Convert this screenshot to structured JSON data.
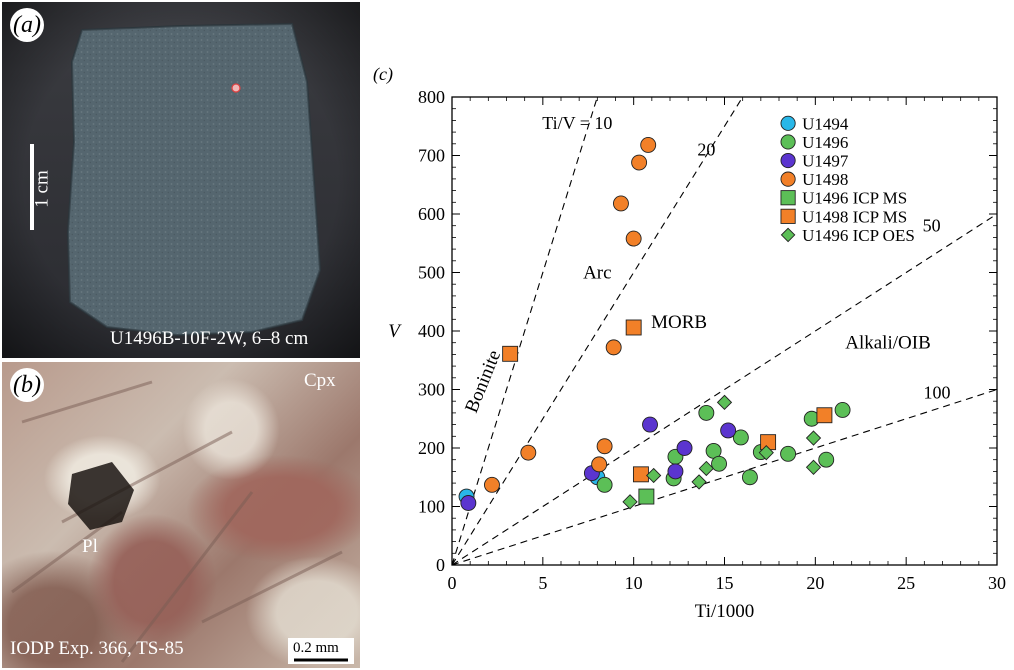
{
  "panel_a": {
    "tag": "(a)",
    "scale_label": "1 cm",
    "sample_label": "U1496B-10F-2W, 6–8 cm"
  },
  "panel_b": {
    "tag": "(b)",
    "mineral_cpx": "Cpx",
    "mineral_pl": "Pl",
    "sample_label": "IODP Exp. 366, TS-85",
    "scale_label": "0.2 mm"
  },
  "chart_data": {
    "type": "scatter",
    "panel_label": "(c)",
    "title": "",
    "xlabel": "Ti/1000",
    "ylabel": "V",
    "xlim": [
      0,
      30
    ],
    "ylim": [
      0,
      800
    ],
    "x_ticks": [
      0,
      5,
      10,
      15,
      20,
      25,
      30
    ],
    "y_ticks": [
      0,
      100,
      200,
      300,
      400,
      500,
      600,
      700,
      800
    ],
    "grid": false,
    "legend_position": "top-right",
    "reference_lines": [
      {
        "ratio": 10,
        "label": "Ti/V = 10"
      },
      {
        "ratio": 20,
        "label": "20"
      },
      {
        "ratio": 50,
        "label": "50"
      },
      {
        "ratio": 100,
        "label": "100"
      }
    ],
    "field_labels": [
      {
        "text": "Arc",
        "x": 8.0,
        "y": 490
      },
      {
        "text": "MORB",
        "x": 12.5,
        "y": 405
      },
      {
        "text": "Alkali/OIB",
        "x": 24.0,
        "y": 370
      },
      {
        "text": "Boninite",
        "x": 2.0,
        "y": 310
      }
    ],
    "series": [
      {
        "name": "U1494",
        "marker": "circle",
        "color": "#29b7e8",
        "points": [
          [
            0.8,
            117
          ],
          [
            8.0,
            150
          ]
        ]
      },
      {
        "name": "U1496",
        "marker": "circle",
        "color": "#5cbf57",
        "points": [
          [
            8.4,
            137
          ],
          [
            12.2,
            148
          ],
          [
            12.3,
            185
          ],
          [
            14.0,
            260
          ],
          [
            14.4,
            195
          ],
          [
            14.7,
            173
          ],
          [
            15.9,
            218
          ],
          [
            16.4,
            150
          ],
          [
            17.0,
            193
          ],
          [
            18.5,
            190
          ],
          [
            19.8,
            250
          ],
          [
            20.6,
            180
          ],
          [
            21.5,
            265
          ]
        ]
      },
      {
        "name": "U1497",
        "marker": "circle",
        "color": "#5b35cf",
        "points": [
          [
            0.9,
            106
          ],
          [
            7.7,
            157
          ],
          [
            10.9,
            240
          ],
          [
            12.3,
            160
          ],
          [
            12.8,
            200
          ],
          [
            15.2,
            230
          ]
        ]
      },
      {
        "name": "U1498",
        "marker": "circle",
        "color": "#f28028",
        "points": [
          [
            2.2,
            137
          ],
          [
            4.2,
            192
          ],
          [
            8.1,
            172
          ],
          [
            8.4,
            203
          ],
          [
            8.9,
            372
          ],
          [
            9.3,
            618
          ],
          [
            10.0,
            558
          ],
          [
            10.3,
            688
          ],
          [
            10.8,
            718
          ]
        ]
      },
      {
        "name": "U1496 ICP MS",
        "marker": "square",
        "color": "#5cbf57",
        "points": [
          [
            10.7,
            117
          ]
        ]
      },
      {
        "name": "U1498 ICP MS",
        "marker": "square",
        "color": "#f28028",
        "points": [
          [
            3.2,
            361
          ],
          [
            10.0,
            406
          ],
          [
            10.4,
            155
          ],
          [
            17.4,
            210
          ],
          [
            20.5,
            256
          ]
        ]
      },
      {
        "name": "U1496 ICP OES",
        "marker": "diamond",
        "color": "#5cbf57",
        "points": [
          [
            9.8,
            108
          ],
          [
            11.1,
            153
          ],
          [
            13.6,
            142
          ],
          [
            14.0,
            165
          ],
          [
            15.0,
            278
          ],
          [
            17.3,
            192
          ],
          [
            19.9,
            217
          ],
          [
            19.9,
            167
          ]
        ]
      }
    ]
  }
}
